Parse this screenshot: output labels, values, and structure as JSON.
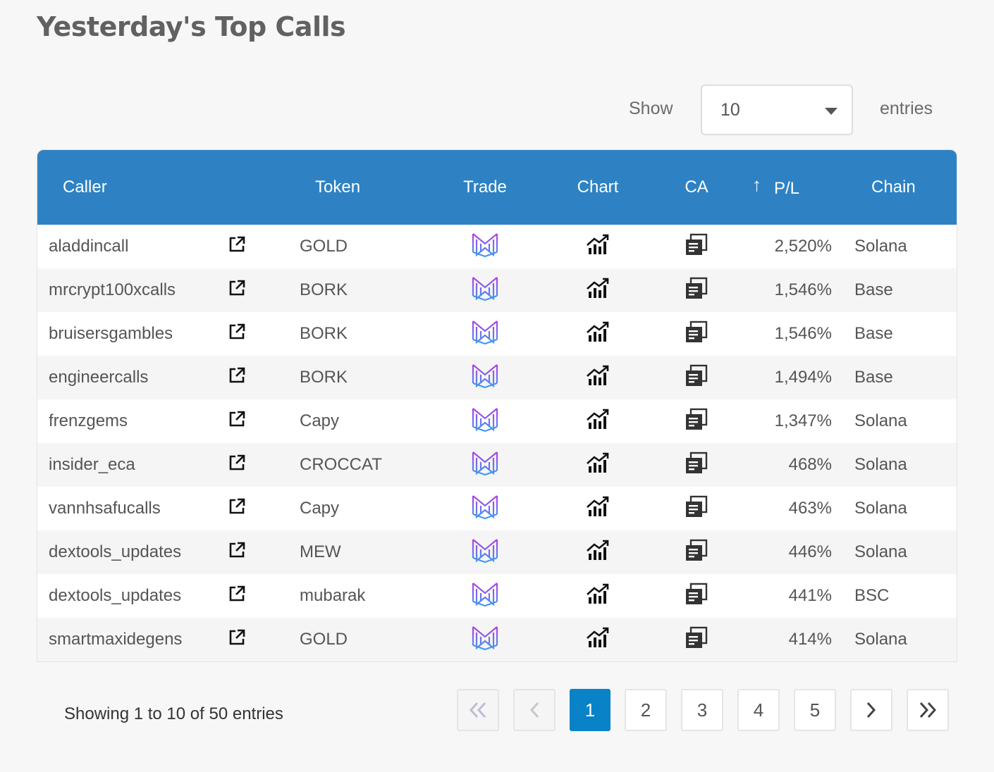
{
  "title": "Yesterday's Top Calls",
  "length_control": {
    "show_label": "Show",
    "selected": "10",
    "entries_label": "entries"
  },
  "table": {
    "headers": {
      "caller": "Caller",
      "token": "Token",
      "trade": "Trade",
      "chart": "Chart",
      "ca": "CA",
      "pl": "P/L",
      "chain": "Chain"
    },
    "sort_icon": "↑",
    "rows": [
      {
        "caller": "aladdincall",
        "token": "GOLD",
        "pl": "2,520%",
        "chain": "Solana"
      },
      {
        "caller": "mrcrypt100xcalls",
        "token": "BORK",
        "pl": "1,546%",
        "chain": "Base"
      },
      {
        "caller": "bruisersgambles",
        "token": "BORK",
        "pl": "1,546%",
        "chain": "Base"
      },
      {
        "caller": "engineercalls",
        "token": "BORK",
        "pl": "1,494%",
        "chain": "Base"
      },
      {
        "caller": "frenzgems",
        "token": "Capy",
        "pl": "1,347%",
        "chain": "Solana"
      },
      {
        "caller": "insider_eca",
        "token": "CROCCAT",
        "pl": "468%",
        "chain": "Solana"
      },
      {
        "caller": "vannhsafucalls",
        "token": "Capy",
        "pl": "463%",
        "chain": "Solana"
      },
      {
        "caller": "dextools_updates",
        "token": "MEW",
        "pl": "446%",
        "chain": "Solana"
      },
      {
        "caller": "dextools_updates",
        "token": "mubarak",
        "pl": "441%",
        "chain": "BSC"
      },
      {
        "caller": "smartmaxidegens",
        "token": "GOLD",
        "pl": "414%",
        "chain": "Solana"
      }
    ]
  },
  "icons": {
    "link": "external-link-icon",
    "trade": "trade-logo-icon",
    "chart": "chart-growth-icon",
    "ca": "copy-icon",
    "first": "double-chevron-left-icon",
    "prev": "chevron-left-icon",
    "next": "chevron-right-icon",
    "last": "double-chevron-right-icon"
  },
  "colors": {
    "header_bg": "#2e82c3",
    "active_page": "#0a82c7"
  },
  "pagination": {
    "info": "Showing 1 to 10 of 50 entries",
    "pages": [
      "1",
      "2",
      "3",
      "4",
      "5"
    ],
    "current": "1"
  }
}
